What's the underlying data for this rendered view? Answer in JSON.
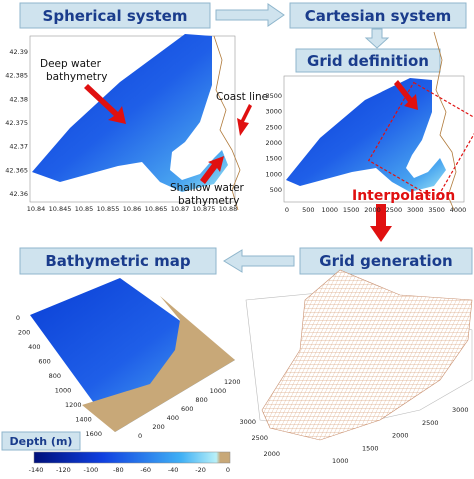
{
  "steps": {
    "spherical": "Spherical system",
    "cartesian": "Cartesian system",
    "grid_definition": "Grid definition",
    "interpolation": "Interpolation",
    "grid_generation": "Grid generation",
    "bathymetric_map": "Bathymetric map"
  },
  "annotations": {
    "deep_water": [
      "Deep water",
      "bathymetry"
    ],
    "coast_line": "Coast line",
    "shallow_water": [
      "Shallow water",
      "bathymetry"
    ]
  },
  "spherical_plot": {
    "yticks": [
      42.39,
      42.385,
      42.38,
      42.375,
      42.37,
      42.365,
      42.36
    ],
    "xticks": [
      10.84,
      10.845,
      10.85,
      10.855,
      10.86,
      10.865,
      10.87,
      10.875,
      10.88
    ]
  },
  "cartesian_plot": {
    "yticks": [
      3500,
      3000,
      2500,
      2000,
      1500,
      1000,
      500
    ],
    "xticks": [
      0,
      500,
      1000,
      1500,
      2000,
      2500,
      3000,
      3500,
      4000
    ]
  },
  "map_plot": {
    "left_ticks": [
      0,
      200,
      400,
      600,
      800,
      1000,
      1200,
      1400,
      1600
    ],
    "right_ticks": [
      1200,
      1000,
      800,
      600,
      400,
      200,
      0
    ]
  },
  "mesh_plot": {
    "left_ticks": [
      3000,
      2500,
      2000
    ],
    "bottom_ticks": [
      1000,
      1500,
      2000,
      2500,
      3000
    ]
  },
  "colorbar": {
    "label": "Depth (m)",
    "ticks": [
      -140,
      -120,
      -100,
      -80,
      -60,
      -40,
      -20,
      0
    ]
  }
}
